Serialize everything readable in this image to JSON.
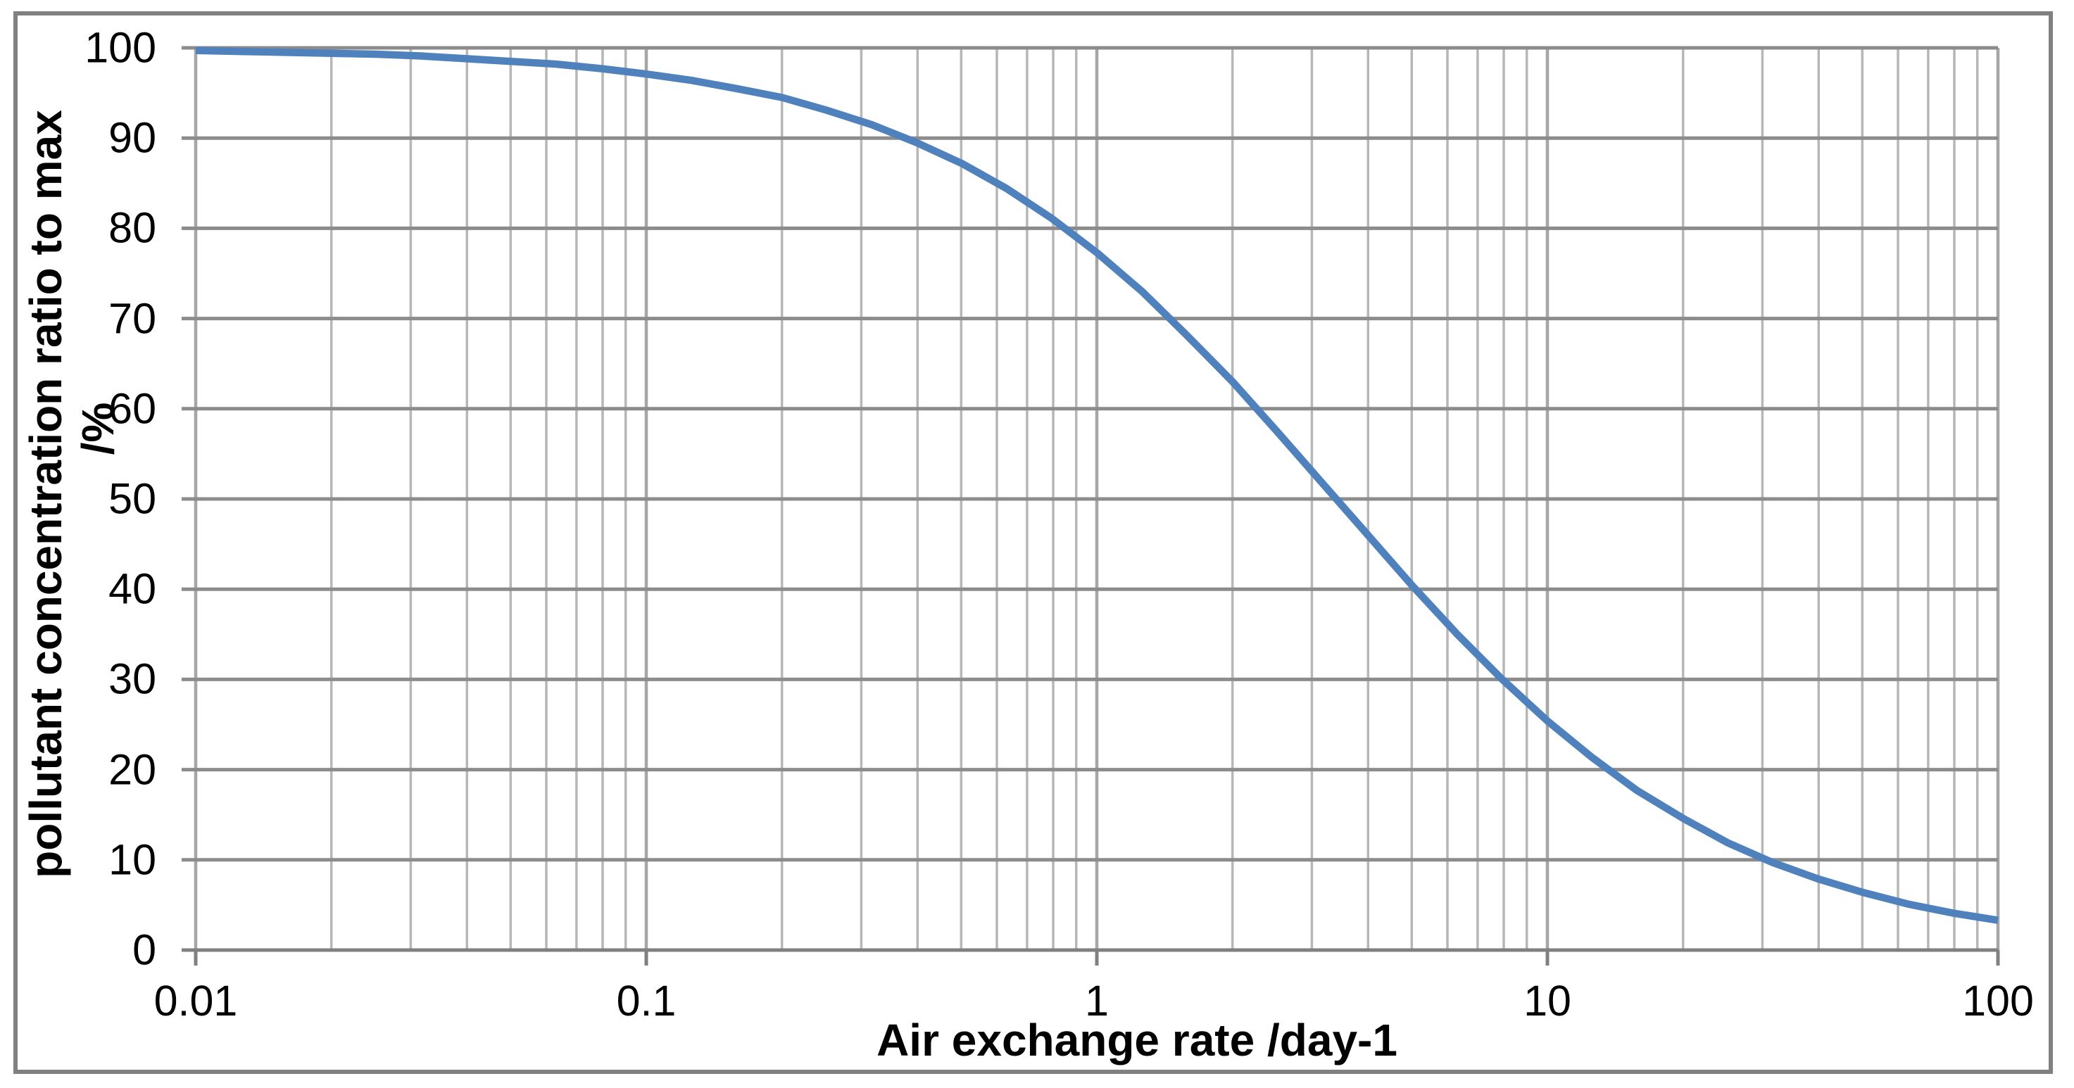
{
  "figure": {
    "background": "#FFFFFF",
    "border_color": "#808080"
  },
  "colors": {
    "series_line": "#4F81BD",
    "h_gridline": "#8C8C8C",
    "axis_line": "#808080",
    "v_gridline_major": "#A6A6A6",
    "v_gridline_minor": "#B7B7B7",
    "tick_mark": "#808080",
    "text": "#000000"
  },
  "chart_data": {
    "type": "line",
    "title": "",
    "xlabel": "Air exchange rate /day-1",
    "ylabel": "pollutant concentration ratio to max /%",
    "ylabel_line1": "pollutant concentration ratio to max",
    "ylabel_line2": "/%",
    "xscale": "log",
    "xlim": [
      0.01,
      100
    ],
    "ylim": [
      0,
      100
    ],
    "grid": true,
    "legend": false,
    "x_tick_values": [
      0.01,
      0.1,
      1,
      10,
      100
    ],
    "x_tick_labels": [
      "0.01",
      "0.1",
      "1",
      "10",
      "100"
    ],
    "x_minor_gridlines": "multiples 2-9 of each decade",
    "y_tick_values": [
      0,
      10,
      20,
      30,
      40,
      50,
      60,
      70,
      80,
      90,
      100
    ],
    "y_tick_labels": [
      "0",
      "10",
      "20",
      "30",
      "40",
      "50",
      "60",
      "70",
      "80",
      "90",
      "100"
    ],
    "series": [
      {
        "name": "pollutant concentration ratio to max",
        "color": "#4F81BD",
        "points": [
          [
            0.01,
            99.7
          ],
          [
            0.0126,
            99.6
          ],
          [
            0.0158,
            99.5
          ],
          [
            0.02,
            99.4
          ],
          [
            0.0251,
            99.3
          ],
          [
            0.0316,
            99.1
          ],
          [
            0.0398,
            98.8
          ],
          [
            0.0501,
            98.5
          ],
          [
            0.0631,
            98.2
          ],
          [
            0.0794,
            97.7
          ],
          [
            0.1,
            97.1
          ],
          [
            0.126,
            96.4
          ],
          [
            0.158,
            95.5
          ],
          [
            0.2,
            94.5
          ],
          [
            0.251,
            93.1
          ],
          [
            0.316,
            91.5
          ],
          [
            0.398,
            89.5
          ],
          [
            0.501,
            87.2
          ],
          [
            0.631,
            84.4
          ],
          [
            0.794,
            81.1
          ],
          [
            1,
            77.3
          ],
          [
            1.26,
            73.0
          ],
          [
            1.58,
            68.2
          ],
          [
            2,
            63.0
          ],
          [
            2.51,
            57.5
          ],
          [
            3.16,
            51.8
          ],
          [
            3.98,
            46.1
          ],
          [
            5.01,
            40.4
          ],
          [
            6.31,
            35.0
          ],
          [
            7.94,
            30.0
          ],
          [
            10,
            25.4
          ],
          [
            12.6,
            21.3
          ],
          [
            15.8,
            17.7
          ],
          [
            20,
            14.6
          ],
          [
            25.1,
            11.9
          ],
          [
            31.6,
            9.7
          ],
          [
            39.8,
            7.9
          ],
          [
            50.1,
            6.4
          ],
          [
            63.1,
            5.1
          ],
          [
            79.4,
            4.1
          ],
          [
            100,
            3.3
          ]
        ]
      }
    ]
  }
}
